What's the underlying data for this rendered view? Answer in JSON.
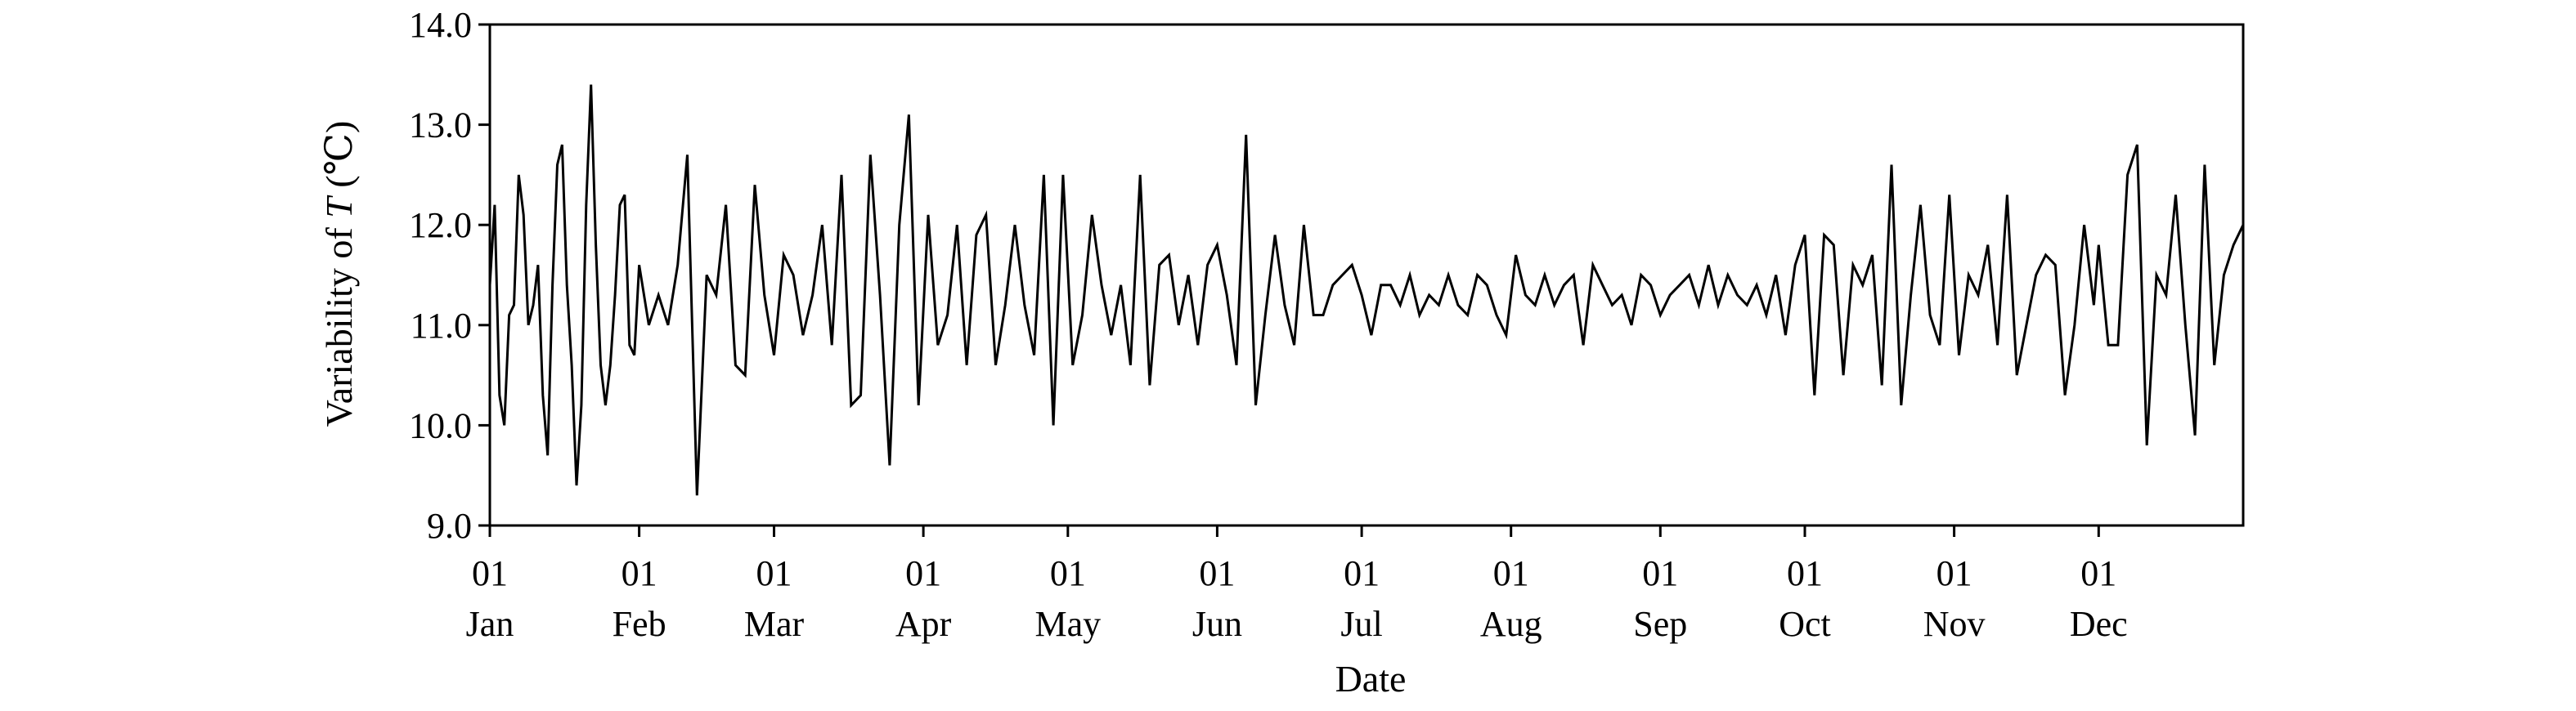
{
  "chart_data": {
    "type": "line",
    "xlabel": "Date",
    "ylabel_prefix": "Variability of ",
    "ylabel_var": "T",
    "ylabel_unit": " (℃)",
    "ylim": [
      9.0,
      14.0
    ],
    "yticks": [
      "9.0",
      "10.0",
      "11.0",
      "12.0",
      "13.0",
      "14.0"
    ],
    "xticks": [
      {
        "day": "01",
        "month": "Jan"
      },
      {
        "day": "01",
        "month": "Feb"
      },
      {
        "day": "01",
        "month": "Mar"
      },
      {
        "day": "01",
        "month": "Apr"
      },
      {
        "day": "01",
        "month": "May"
      },
      {
        "day": "01",
        "month": "Jun"
      },
      {
        "day": "01",
        "month": "Jul"
      },
      {
        "day": "01",
        "month": "Aug"
      },
      {
        "day": "01",
        "month": "Sep"
      },
      {
        "day": "01",
        "month": "Oct"
      },
      {
        "day": "01",
        "month": "Nov"
      },
      {
        "day": "01",
        "month": "Dec"
      }
    ],
    "grid": false,
    "line_color": "#000000",
    "series": [
      {
        "x": [
          "01-01",
          "01-02",
          "01-03",
          "01-04",
          "01-05",
          "01-06",
          "01-07",
          "01-08",
          "01-09",
          "01-10",
          "01-11",
          "01-12",
          "01-13",
          "01-14",
          "01-15",
          "01-16",
          "01-17",
          "01-18",
          "01-19",
          "01-20",
          "01-21",
          "01-22",
          "01-23",
          "01-24",
          "01-25",
          "01-26",
          "01-27",
          "01-28",
          "01-29",
          "01-30",
          "01-31",
          "02-01",
          "02-03",
          "02-05",
          "02-07",
          "02-09",
          "02-11",
          "02-13",
          "02-15",
          "02-17",
          "02-19",
          "02-21",
          "02-23",
          "02-25",
          "02-27",
          "03-01",
          "03-03",
          "03-05",
          "03-07",
          "03-09",
          "03-11",
          "03-13",
          "03-15",
          "03-17",
          "03-19",
          "03-21",
          "03-23",
          "03-25",
          "03-27",
          "03-29",
          "03-31",
          "04-02",
          "04-04",
          "04-06",
          "04-08",
          "04-10",
          "04-12",
          "04-14",
          "04-16",
          "04-18",
          "04-20",
          "04-22",
          "04-24",
          "04-26",
          "04-28",
          "04-30",
          "05-02",
          "05-04",
          "05-06",
          "05-08",
          "05-10",
          "05-12",
          "05-14",
          "05-16",
          "05-18",
          "05-20",
          "05-22",
          "05-24",
          "05-26",
          "05-28",
          "05-30",
          "06-01",
          "06-03",
          "06-05",
          "06-07",
          "06-09",
          "06-11",
          "06-13",
          "06-15",
          "06-17",
          "06-19",
          "06-21",
          "06-23",
          "06-25",
          "06-27",
          "06-29",
          "07-01",
          "07-03",
          "07-05",
          "07-07",
          "07-09",
          "07-11",
          "07-13",
          "07-15",
          "07-17",
          "07-19",
          "07-21",
          "07-23",
          "07-25",
          "07-27",
          "07-29",
          "07-31",
          "08-02",
          "08-04",
          "08-06",
          "08-08",
          "08-10",
          "08-12",
          "08-14",
          "08-16",
          "08-18",
          "08-20",
          "08-22",
          "08-24",
          "08-26",
          "08-28",
          "08-30",
          "09-01",
          "09-03",
          "09-05",
          "09-07",
          "09-09",
          "09-11",
          "09-13",
          "09-15",
          "09-17",
          "09-19",
          "09-21",
          "09-23",
          "09-25",
          "09-27",
          "09-29",
          "10-01",
          "10-03",
          "10-05",
          "10-07",
          "10-09",
          "10-11",
          "10-13",
          "10-15",
          "10-17",
          "10-19",
          "10-21",
          "10-23",
          "10-25",
          "10-27",
          "10-29",
          "10-31",
          "11-02",
          "11-04",
          "11-06",
          "11-08",
          "11-10",
          "11-12",
          "11-14",
          "11-16",
          "11-18",
          "11-20",
          "11-22",
          "11-24",
          "11-26",
          "11-28",
          "11-30",
          "12-01",
          "12-03",
          "12-05",
          "12-07",
          "12-09",
          "12-11",
          "12-13",
          "12-15",
          "12-17",
          "12-19",
          "12-21",
          "12-23",
          "12-25",
          "12-27",
          "12-29",
          "12-31"
        ],
        "y": [
          11.4,
          12.2,
          10.3,
          10.0,
          11.1,
          11.2,
          12.5,
          12.1,
          11.0,
          11.2,
          11.6,
          10.3,
          9.7,
          11.4,
          12.6,
          12.8,
          11.4,
          10.6,
          9.4,
          10.2,
          12.2,
          13.4,
          11.8,
          10.6,
          10.2,
          10.6,
          11.3,
          12.2,
          12.3,
          10.8,
          10.7,
          11.6,
          11.0,
          11.3,
          11.0,
          11.6,
          12.7,
          9.3,
          11.5,
          11.3,
          12.2,
          10.6,
          10.5,
          12.4,
          11.3,
          10.7,
          11.7,
          11.5,
          10.9,
          11.3,
          12.0,
          10.8,
          12.5,
          10.2,
          10.3,
          12.7,
          11.3,
          9.6,
          12.0,
          13.1,
          10.2,
          12.1,
          10.8,
          11.1,
          12.0,
          10.6,
          11.9,
          12.1,
          10.6,
          11.2,
          12.0,
          11.2,
          10.7,
          12.5,
          10.0,
          12.5,
          10.6,
          11.1,
          12.1,
          11.4,
          10.9,
          11.4,
          10.6,
          12.5,
          10.4,
          11.6,
          11.7,
          11.0,
          11.5,
          10.8,
          11.6,
          11.8,
          11.3,
          10.6,
          12.9,
          10.2,
          11.1,
          11.9,
          11.2,
          10.8,
          12.0,
          11.1,
          11.1,
          11.4,
          11.5,
          11.6,
          11.3,
          10.9,
          11.4,
          11.4,
          11.2,
          11.5,
          11.1,
          11.3,
          11.2,
          11.5,
          11.2,
          11.1,
          11.5,
          11.4,
          11.1,
          10.9,
          11.7,
          11.3,
          11.2,
          11.5,
          11.2,
          11.4,
          11.5,
          10.8,
          11.6,
          11.4,
          11.2,
          11.3,
          11.0,
          11.5,
          11.4,
          11.1,
          11.3,
          11.4,
          11.5,
          11.2,
          11.6,
          11.2,
          11.5,
          11.3,
          11.2,
          11.4,
          11.1,
          11.5,
          10.9,
          11.6,
          11.9,
          10.3,
          11.9,
          11.8,
          10.5,
          11.6,
          11.4,
          11.7,
          10.4,
          12.6,
          10.2,
          11.3,
          12.2,
          11.1,
          10.8,
          12.3,
          10.7,
          11.5,
          11.3,
          11.8,
          10.8,
          12.3,
          10.5,
          11.0,
          11.5,
          11.7,
          11.6,
          10.3,
          11.0,
          12.0,
          11.2,
          11.8,
          10.8,
          10.8,
          12.5,
          12.8,
          9.8,
          11.5,
          11.3,
          12.3,
          11.0,
          9.9,
          12.6,
          10.6,
          11.5,
          11.8,
          12.0
        ]
      }
    ]
  }
}
